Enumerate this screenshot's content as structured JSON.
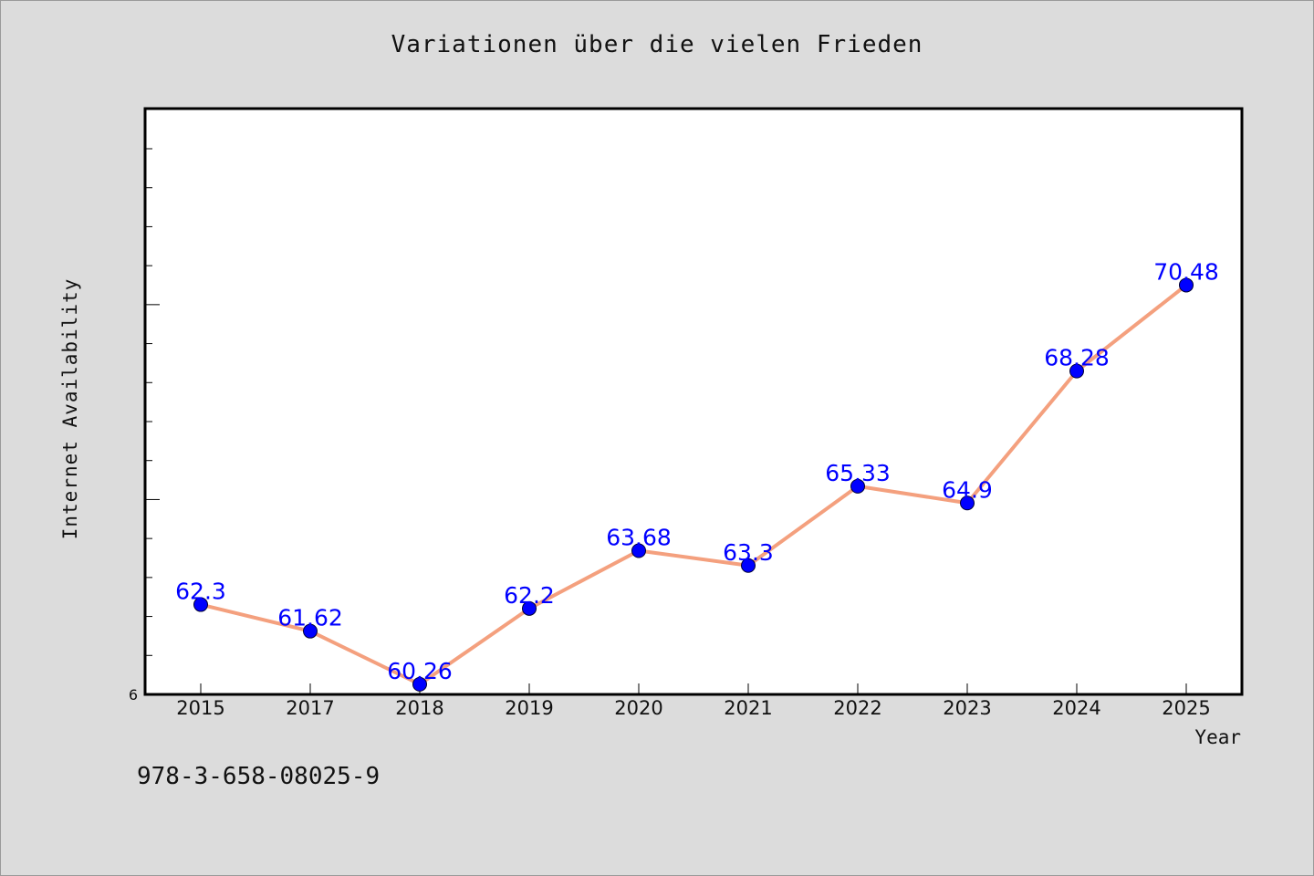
{
  "chart_data": {
    "type": "line",
    "title": "Variationen über die vielen Frieden",
    "xlabel": "Year",
    "ylabel": "Internet Availability",
    "categories": [
      "2015",
      "2017",
      "2018",
      "2019",
      "2020",
      "2021",
      "2022",
      "2023",
      "2024",
      "2025"
    ],
    "series": [
      {
        "values": [
          62.3,
          61.62,
          60.26,
          62.2,
          63.68,
          63.3,
          65.33,
          64.9,
          68.28,
          70.48
        ],
        "data_labels": [
          "62.3",
          "61.62",
          "60.26",
          "62.2",
          "63.68",
          "63.3",
          "65.33",
          "64.9",
          "68.28",
          "70.48"
        ]
      }
    ],
    "y_tick_label": "6",
    "ylim": [
      60,
      75
    ],
    "grid": false,
    "legend": "none",
    "colors": {
      "line": "#f4a07e",
      "marker": "#0000ff",
      "data_label": "#0000ff",
      "plot_background": "#ffffff",
      "figure_background": "#dcdcdc"
    }
  },
  "footer": {
    "code": "978-3-658-08025-9"
  }
}
